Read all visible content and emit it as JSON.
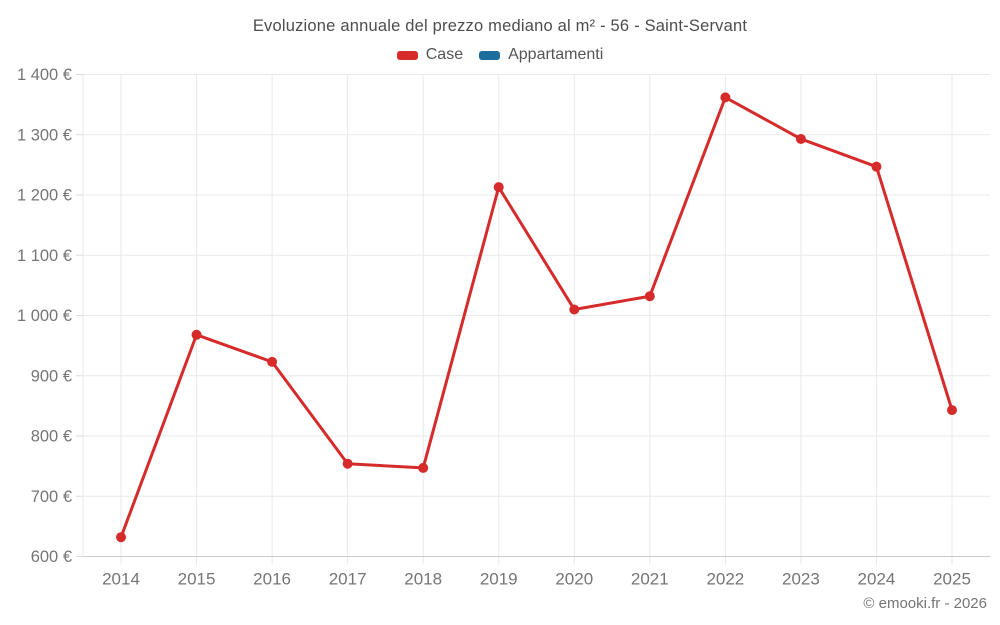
{
  "attribution": "© emooki.fr - 2026",
  "chart_data": {
    "type": "line",
    "title": "Evoluzione annuale del prezzo mediano al m² - 56 - Saint-Servant",
    "x": [
      "2014",
      "2015",
      "2016",
      "2017",
      "2018",
      "2019",
      "2020",
      "2021",
      "2022",
      "2023",
      "2024",
      "2025"
    ],
    "series": [
      {
        "name": "Case",
        "color": "#d62b2b",
        "values": [
          632,
          968,
          923,
          754,
          747,
          1213,
          1010,
          1032,
          1362,
          1293,
          1247,
          843
        ]
      },
      {
        "name": "Appartamenti",
        "color": "#1b6d9e",
        "values": []
      }
    ],
    "xlabel": "",
    "ylabel": "",
    "ylim": [
      600,
      1400
    ],
    "ytick_step": 100,
    "ytick_format": "{value} €",
    "grid": true,
    "legend_position": "top"
  }
}
